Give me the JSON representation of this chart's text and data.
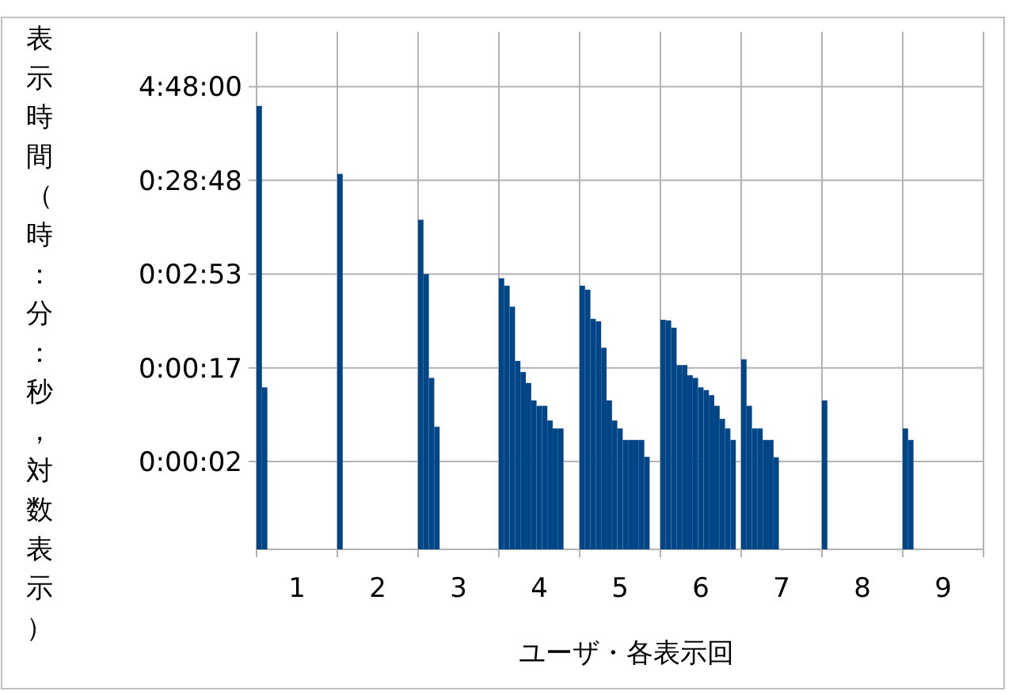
{
  "chart_data": {
    "type": "bar",
    "xlabel": "ユーザ・各表示回",
    "ylabel": "表示時間（時：分：秒，対数表示）",
    "log": "y",
    "grid": true,
    "color": "#004586",
    "x": [
      0.533,
      0.6,
      1.533,
      2.533,
      2.6,
      2.667,
      2.733,
      3.533,
      3.6,
      3.667,
      3.733,
      3.8,
      3.867,
      3.933,
      4.0,
      4.067,
      4.133,
      4.2,
      4.267,
      4.533,
      4.6,
      4.667,
      4.733,
      4.8,
      4.867,
      4.933,
      5.0,
      5.067,
      5.133,
      5.2,
      5.267,
      5.333,
      5.533,
      5.6,
      5.667,
      5.733,
      5.8,
      5.867,
      5.933,
      6.0,
      6.067,
      6.133,
      6.2,
      6.267,
      6.333,
      6.4,
      6.533,
      6.6,
      6.667,
      6.733,
      6.8,
      6.867,
      6.933,
      7.533,
      8.533,
      8.6
    ],
    "values": [
      10750,
      10.7,
      2025,
      657,
      173,
      13.5,
      4.06,
      156,
      130,
      77.7,
      20.5,
      15.6,
      11.9,
      7.77,
      6.8,
      6.8,
      4.74,
      3.9,
      3.9,
      130,
      117.7,
      57.6,
      54.1,
      28.3,
      7.77,
      4.74,
      3.9,
      2.94,
      2.94,
      2.94,
      2.94,
      1.94,
      56.3,
      55.4,
      46.3,
      18.5,
      18.5,
      14.4,
      13.5,
      10.7,
      10.0,
      8.83,
      6.8,
      4.93,
      3.9,
      2.94,
      21.3,
      6.8,
      3.9,
      3.9,
      2.94,
      2.94,
      1.92,
      7.77,
      3.9,
      2.94
    ],
    "xlim": [
      0.5,
      9.5
    ],
    "xticks": [
      1,
      2,
      3,
      4,
      5,
      6,
      7,
      8,
      9
    ],
    "ylim": [
      0.2,
      66700
    ],
    "yticks": [
      {
        "value": 1.728,
        "label": "0:00:02"
      },
      {
        "value": 17.28,
        "label": "0:00:17"
      },
      {
        "value": 172.8,
        "label": "0:02:53"
      },
      {
        "value": 1728,
        "label": "0:28:48"
      },
      {
        "value": 17280,
        "label": "4:48:00"
      }
    ]
  }
}
